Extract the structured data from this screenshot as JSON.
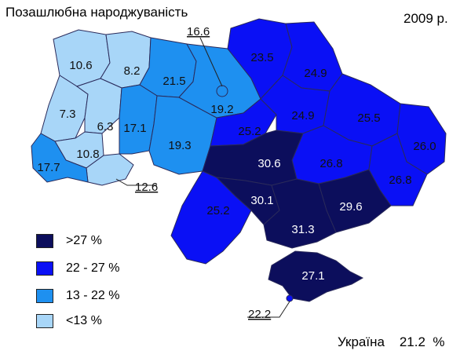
{
  "title": "Позашлюбна народжуваність",
  "year": "2009 р.",
  "total": "Україна    21.2  %",
  "colors": {
    "lt13": "#a8d6f8",
    "13_22": "#1e90f0",
    "22_27": "#0a10f5",
    "gt27": "#0c0e5c",
    "region_border": "#2a2a5a"
  },
  "legend": [
    {
      "label": ">27 %",
      "color_key": "gt27"
    },
    {
      "label": "22 - 27 %",
      "color_key": "22_27"
    },
    {
      "label": "13 - 22 %",
      "color_key": "13_22"
    },
    {
      "label": "<13 %",
      "color_key": "lt13"
    }
  ],
  "regions": [
    {
      "value": "10.6",
      "class": "lt13"
    },
    {
      "value": "8.2",
      "class": "lt13"
    },
    {
      "value": "7.3",
      "class": "lt13"
    },
    {
      "value": "6.3",
      "class": "lt13"
    },
    {
      "value": "10.8",
      "class": "lt13"
    },
    {
      "value": "12.6",
      "class": "lt13"
    },
    {
      "value": "17.7",
      "class": "13_22"
    },
    {
      "value": "21.5",
      "class": "13_22"
    },
    {
      "value": "17.1",
      "class": "13_22"
    },
    {
      "value": "19.3",
      "class": "13_22"
    },
    {
      "value": "19.2",
      "class": "13_22"
    },
    {
      "value": "16.6",
      "class": "13_22"
    },
    {
      "value": "23.5",
      "class": "22_27"
    },
    {
      "value": "24.9",
      "class": "22_27"
    },
    {
      "value": "25.2",
      "class": "22_27"
    },
    {
      "value": "24.9",
      "class": "22_27"
    },
    {
      "value": "25.5",
      "class": "22_27"
    },
    {
      "value": "26.0",
      "class": "22_27"
    },
    {
      "value": "26.8",
      "class": "22_27"
    },
    {
      "value": "26.8",
      "class": "22_27"
    },
    {
      "value": "25.2",
      "class": "22_27"
    },
    {
      "value": "30.6",
      "class": "gt27"
    },
    {
      "value": "30.1",
      "class": "gt27"
    },
    {
      "value": "29.6",
      "class": "gt27"
    },
    {
      "value": "31.3",
      "class": "gt27"
    },
    {
      "value": "27.1",
      "class": "gt27"
    },
    {
      "value": "22.2",
      "class": "22_27"
    }
  ]
}
